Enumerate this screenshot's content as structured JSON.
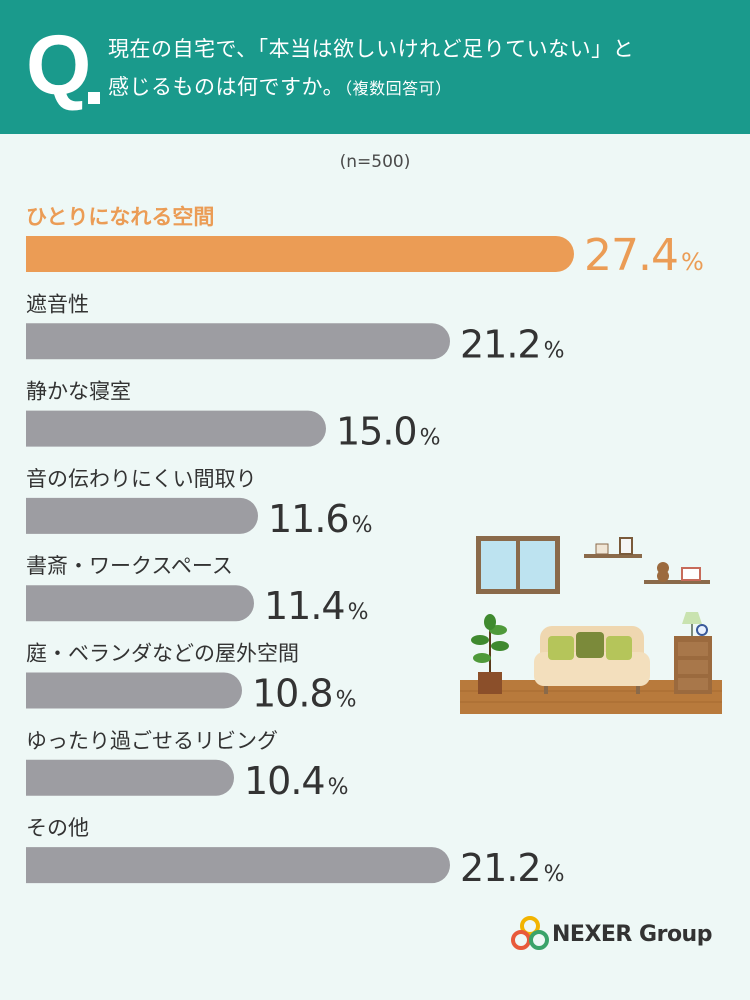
{
  "header": {
    "q_letter": "Q",
    "question_line1": "現在の自宅で、「本当は欲しいけれど足りていない」と",
    "question_line2": "感じるものは何ですか。",
    "question_note": "（複数回答可）"
  },
  "sample_size": "(n=500)",
  "colors": {
    "header_bg": "#1a9a8c",
    "highlight": "#eb9c55",
    "bar": "#9d9da2",
    "background": "#eef8f6"
  },
  "chart_data": {
    "type": "bar",
    "orientation": "horizontal",
    "categories": [
      "ひとりになれる空間",
      "遮音性",
      "静かな寝室",
      "音の伝わりにくい間取り",
      "書斎・ワークスペース",
      "庭・ベランダなどの屋外空間",
      "ゆったり過ごせるリビング",
      "その他"
    ],
    "values": [
      27.4,
      21.2,
      15.0,
      11.6,
      11.4,
      10.8,
      10.4,
      21.2
    ],
    "value_labels": [
      "27.4",
      "21.2",
      "15.0",
      "11.6",
      "11.4",
      "10.8",
      "10.4",
      "21.2"
    ],
    "unit": "%",
    "highlight_index": 0
  },
  "illustration": {
    "name": "living-room-illustration"
  },
  "brand": {
    "name": "NEXER Group"
  }
}
